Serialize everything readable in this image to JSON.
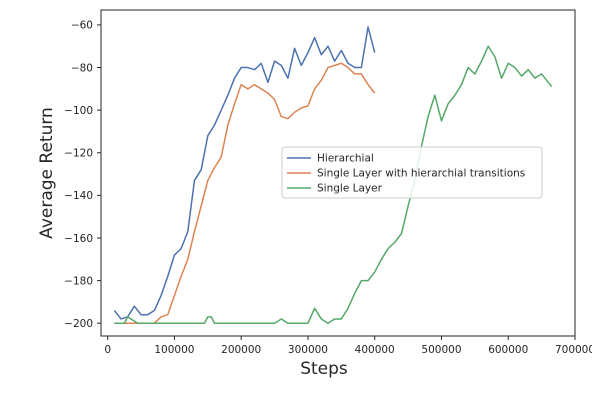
{
  "chart_data": {
    "type": "line",
    "title": "",
    "xlabel": "Steps",
    "ylabel": "Average Return",
    "xlim": [
      -10000,
      700000
    ],
    "ylim": [
      -206,
      -53
    ],
    "xticks": [
      0,
      100000,
      200000,
      300000,
      400000,
      500000,
      600000,
      700000
    ],
    "xtick_labels": [
      "0",
      "100000",
      "200000",
      "300000",
      "400000",
      "500000",
      "600000",
      "700000"
    ],
    "yticks": [
      -200,
      -180,
      -160,
      -140,
      -120,
      -100,
      -80,
      -60
    ],
    "ytick_labels": [
      "−200",
      "−180",
      "−160",
      "−140",
      "−120",
      "−100",
      "−80",
      "−60"
    ],
    "grid": false,
    "legend_position": "center-right",
    "series": [
      {
        "name": "Hierarchial",
        "color": "#4c72b0",
        "x": [
          10000,
          20000,
          30000,
          40000,
          50000,
          60000,
          70000,
          80000,
          90000,
          100000,
          110000,
          120000,
          130000,
          140000,
          150000,
          160000,
          170000,
          180000,
          190000,
          200000,
          210000,
          220000,
          230000,
          240000,
          250000,
          260000,
          270000,
          280000,
          290000,
          300000,
          310000,
          320000,
          330000,
          340000,
          350000,
          360000,
          370000,
          380000,
          390000,
          400000
        ],
        "y": [
          -194,
          -198,
          -197,
          -192,
          -196,
          -196,
          -194,
          -187,
          -178,
          -168,
          -165,
          -157,
          -133,
          -128,
          -112,
          -107,
          -100,
          -93,
          -85,
          -80,
          -80,
          -81,
          -78,
          -87,
          -77,
          -79,
          -85,
          -71,
          -79,
          -73,
          -66,
          -74,
          -70,
          -77,
          -72,
          -78,
          -80,
          -80,
          -61,
          -73
        ]
      },
      {
        "name": "Single Layer with hierarchial transitions",
        "color": "#dd8452",
        "x": [
          10000,
          20000,
          30000,
          40000,
          50000,
          60000,
          70000,
          80000,
          90000,
          100000,
          110000,
          120000,
          130000,
          140000,
          150000,
          160000,
          170000,
          180000,
          190000,
          200000,
          210000,
          220000,
          230000,
          240000,
          250000,
          260000,
          270000,
          280000,
          290000,
          300000,
          310000,
          320000,
          330000,
          340000,
          350000,
          360000,
          370000,
          380000,
          390000,
          400000
        ],
        "y": [
          -200,
          -200,
          -200,
          -200,
          -200,
          -200,
          -200,
          -197,
          -196,
          -187,
          -178,
          -170,
          -157,
          -145,
          -133,
          -127,
          -122,
          -107,
          -97,
          -88,
          -90,
          -88,
          -90,
          -92,
          -95,
          -103,
          -104,
          -101,
          -99,
          -98,
          -90,
          -86,
          -80,
          -79,
          -78,
          -80,
          -83,
          -83,
          -88,
          -92
        ]
      },
      {
        "name": "Single Layer",
        "color": "#55a868",
        "x": [
          10000,
          25000,
          30000,
          45000,
          60000,
          80000,
          100000,
          130000,
          145000,
          150000,
          155000,
          160000,
          200000,
          250000,
          260000,
          270000,
          280000,
          300000,
          310000,
          320000,
          330000,
          340000,
          350000,
          360000,
          370000,
          380000,
          390000,
          400000,
          410000,
          420000,
          430000,
          440000,
          450000,
          460000,
          470000,
          480000,
          490000,
          500000,
          510000,
          520000,
          530000,
          540000,
          550000,
          560000,
          570000,
          580000,
          590000,
          600000,
          610000,
          620000,
          630000,
          640000,
          650000,
          660000,
          665000
        ],
        "y": [
          -200,
          -200,
          -197,
          -200,
          -200,
          -200,
          -200,
          -200,
          -200,
          -197,
          -197,
          -200,
          -200,
          -200,
          -198,
          -200,
          -200,
          -200,
          -193,
          -198,
          -200,
          -198,
          -198,
          -193,
          -186,
          -180,
          -180,
          -176,
          -170,
          -165,
          -162,
          -158,
          -145,
          -133,
          -117,
          -103,
          -93,
          -105,
          -97,
          -93,
          -88,
          -80,
          -83,
          -77,
          -70,
          -75,
          -85,
          -78,
          -80,
          -84,
          -81,
          -85,
          -83,
          -87,
          -89
        ]
      }
    ]
  }
}
